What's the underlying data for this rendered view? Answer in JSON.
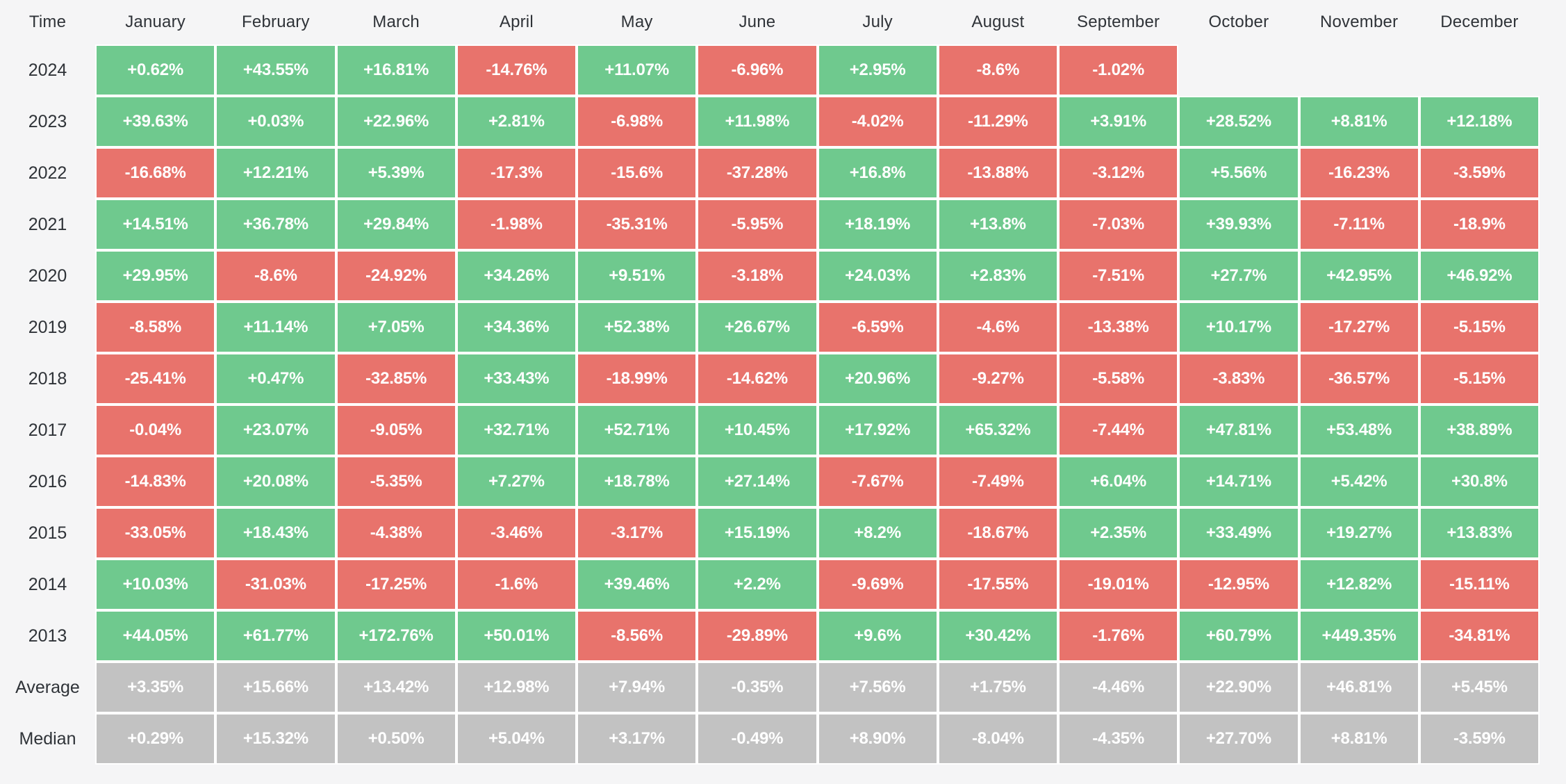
{
  "colors": {
    "positive": "#6fc98e",
    "negative": "#e8736c",
    "neutral": "#c2c2c2",
    "page_background": "#f5f5f6",
    "cell_gap": "#ffffff",
    "label_text": "#2f3338",
    "cell_text": "#ffffff"
  },
  "chart_data": {
    "type": "heatmap",
    "row_header": "Time",
    "value_units": "%",
    "legend_position": "none",
    "categories": [
      "January",
      "February",
      "March",
      "April",
      "May",
      "June",
      "July",
      "August",
      "September",
      "October",
      "November",
      "December"
    ],
    "rows": [
      {
        "label": "2024",
        "type": "year",
        "display": [
          "+0.62%",
          "+43.55%",
          "+16.81%",
          "-14.76%",
          "+11.07%",
          "-6.96%",
          "+2.95%",
          "-8.6%",
          "-1.02%",
          "",
          "",
          ""
        ],
        "values": [
          0.62,
          43.55,
          16.81,
          -14.76,
          11.07,
          -6.96,
          2.95,
          -8.6,
          -1.02,
          null,
          null,
          null
        ]
      },
      {
        "label": "2023",
        "type": "year",
        "display": [
          "+39.63%",
          "+0.03%",
          "+22.96%",
          "+2.81%",
          "-6.98%",
          "+11.98%",
          "-4.02%",
          "-11.29%",
          "+3.91%",
          "+28.52%",
          "+8.81%",
          "+12.18%"
        ],
        "values": [
          39.63,
          0.03,
          22.96,
          2.81,
          -6.98,
          11.98,
          -4.02,
          -11.29,
          3.91,
          28.52,
          8.81,
          12.18
        ]
      },
      {
        "label": "2022",
        "type": "year",
        "display": [
          "-16.68%",
          "+12.21%",
          "+5.39%",
          "-17.3%",
          "-15.6%",
          "-37.28%",
          "+16.8%",
          "-13.88%",
          "-3.12%",
          "+5.56%",
          "-16.23%",
          "-3.59%"
        ],
        "values": [
          -16.68,
          12.21,
          5.39,
          -17.3,
          -15.6,
          -37.28,
          16.8,
          -13.88,
          -3.12,
          5.56,
          -16.23,
          -3.59
        ]
      },
      {
        "label": "2021",
        "type": "year",
        "display": [
          "+14.51%",
          "+36.78%",
          "+29.84%",
          "-1.98%",
          "-35.31%",
          "-5.95%",
          "+18.19%",
          "+13.8%",
          "-7.03%",
          "+39.93%",
          "-7.11%",
          "-18.9%"
        ],
        "values": [
          14.51,
          36.78,
          29.84,
          -1.98,
          -35.31,
          -5.95,
          18.19,
          13.8,
          -7.03,
          39.93,
          -7.11,
          -18.9
        ]
      },
      {
        "label": "2020",
        "type": "year",
        "display": [
          "+29.95%",
          "-8.6%",
          "-24.92%",
          "+34.26%",
          "+9.51%",
          "-3.18%",
          "+24.03%",
          "+2.83%",
          "-7.51%",
          "+27.7%",
          "+42.95%",
          "+46.92%"
        ],
        "values": [
          29.95,
          -8.6,
          -24.92,
          34.26,
          9.51,
          -3.18,
          24.03,
          2.83,
          -7.51,
          27.7,
          42.95,
          46.92
        ]
      },
      {
        "label": "2019",
        "type": "year",
        "display": [
          "-8.58%",
          "+11.14%",
          "+7.05%",
          "+34.36%",
          "+52.38%",
          "+26.67%",
          "-6.59%",
          "-4.6%",
          "-13.38%",
          "+10.17%",
          "-17.27%",
          "-5.15%"
        ],
        "values": [
          -8.58,
          11.14,
          7.05,
          34.36,
          52.38,
          26.67,
          -6.59,
          -4.6,
          -13.38,
          10.17,
          -17.27,
          -5.15
        ]
      },
      {
        "label": "2018",
        "type": "year",
        "display": [
          "-25.41%",
          "+0.47%",
          "-32.85%",
          "+33.43%",
          "-18.99%",
          "-14.62%",
          "+20.96%",
          "-9.27%",
          "-5.58%",
          "-3.83%",
          "-36.57%",
          "-5.15%"
        ],
        "values": [
          -25.41,
          0.47,
          -32.85,
          33.43,
          -18.99,
          -14.62,
          20.96,
          -9.27,
          -5.58,
          -3.83,
          -36.57,
          -5.15
        ]
      },
      {
        "label": "2017",
        "type": "year",
        "display": [
          "-0.04%",
          "+23.07%",
          "-9.05%",
          "+32.71%",
          "+52.71%",
          "+10.45%",
          "+17.92%",
          "+65.32%",
          "-7.44%",
          "+47.81%",
          "+53.48%",
          "+38.89%"
        ],
        "values": [
          -0.04,
          23.07,
          -9.05,
          32.71,
          52.71,
          10.45,
          17.92,
          65.32,
          -7.44,
          47.81,
          53.48,
          38.89
        ]
      },
      {
        "label": "2016",
        "type": "year",
        "display": [
          "-14.83%",
          "+20.08%",
          "-5.35%",
          "+7.27%",
          "+18.78%",
          "+27.14%",
          "-7.67%",
          "-7.49%",
          "+6.04%",
          "+14.71%",
          "+5.42%",
          "+30.8%"
        ],
        "values": [
          -14.83,
          20.08,
          -5.35,
          7.27,
          18.78,
          27.14,
          -7.67,
          -7.49,
          6.04,
          14.71,
          5.42,
          30.8
        ]
      },
      {
        "label": "2015",
        "type": "year",
        "display": [
          "-33.05%",
          "+18.43%",
          "-4.38%",
          "-3.46%",
          "-3.17%",
          "+15.19%",
          "+8.2%",
          "-18.67%",
          "+2.35%",
          "+33.49%",
          "+19.27%",
          "+13.83%"
        ],
        "values": [
          -33.05,
          18.43,
          -4.38,
          -3.46,
          -3.17,
          15.19,
          8.2,
          -18.67,
          2.35,
          33.49,
          19.27,
          13.83
        ]
      },
      {
        "label": "2014",
        "type": "year",
        "display": [
          "+10.03%",
          "-31.03%",
          "-17.25%",
          "-1.6%",
          "+39.46%",
          "+2.2%",
          "-9.69%",
          "-17.55%",
          "-19.01%",
          "-12.95%",
          "+12.82%",
          "-15.11%"
        ],
        "values": [
          10.03,
          -31.03,
          -17.25,
          -1.6,
          39.46,
          2.2,
          -9.69,
          -17.55,
          -19.01,
          -12.95,
          12.82,
          -15.11
        ]
      },
      {
        "label": "2013",
        "type": "year",
        "display": [
          "+44.05%",
          "+61.77%",
          "+172.76%",
          "+50.01%",
          "-8.56%",
          "-29.89%",
          "+9.6%",
          "+30.42%",
          "-1.76%",
          "+60.79%",
          "+449.35%",
          "-34.81%"
        ],
        "values": [
          44.05,
          61.77,
          172.76,
          50.01,
          -8.56,
          -29.89,
          9.6,
          30.42,
          -1.76,
          60.79,
          449.35,
          -34.81
        ]
      },
      {
        "label": "Average",
        "type": "stat",
        "display": [
          "+3.35%",
          "+15.66%",
          "+13.42%",
          "+12.98%",
          "+7.94%",
          "-0.35%",
          "+7.56%",
          "+1.75%",
          "-4.46%",
          "+22.90%",
          "+46.81%",
          "+5.45%"
        ],
        "values": [
          3.35,
          15.66,
          13.42,
          12.98,
          7.94,
          -0.35,
          7.56,
          1.75,
          -4.46,
          22.9,
          46.81,
          5.45
        ]
      },
      {
        "label": "Median",
        "type": "stat",
        "display": [
          "+0.29%",
          "+15.32%",
          "+0.50%",
          "+5.04%",
          "+3.17%",
          "-0.49%",
          "+8.90%",
          "-8.04%",
          "-4.35%",
          "+27.70%",
          "+8.81%",
          "-3.59%"
        ],
        "values": [
          0.29,
          15.32,
          0.5,
          5.04,
          3.17,
          -0.49,
          8.9,
          -8.04,
          -4.35,
          27.7,
          8.81,
          -3.59
        ]
      }
    ]
  }
}
